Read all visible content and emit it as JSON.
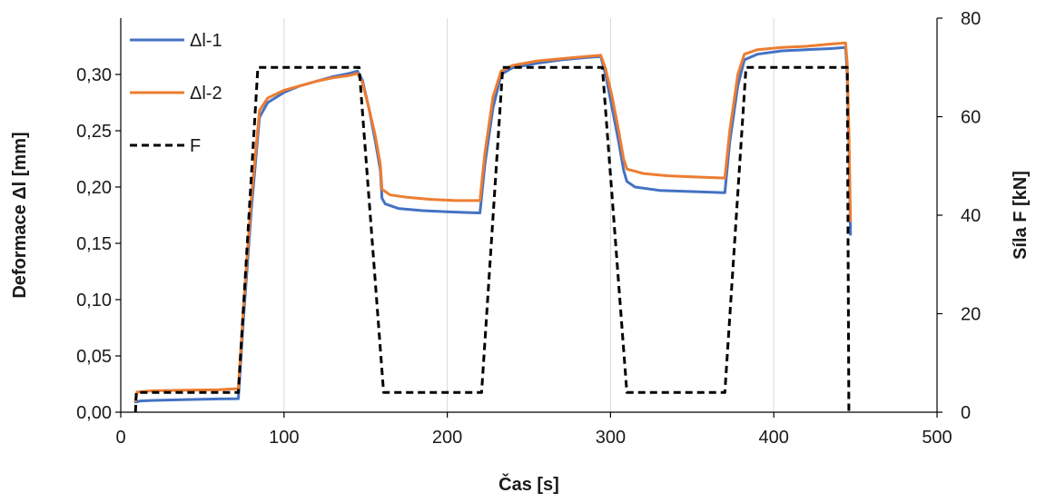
{
  "chart_data": {
    "type": "line",
    "title": "",
    "xlabel": "Čas [s]",
    "ylabel_left": "Deformace Δl [mm]",
    "ylabel_right": "Síla F [kN]",
    "xlim": [
      0,
      500
    ],
    "ylim_left": [
      0,
      0.35
    ],
    "ylim_right": [
      0,
      80
    ],
    "x_ticks": [
      0,
      100,
      200,
      300,
      400,
      500
    ],
    "x_tick_labels": [
      "0",
      "100",
      "200",
      "300",
      "400",
      "500"
    ],
    "y_left_ticks": [
      0,
      0.05,
      0.1,
      0.15,
      0.2,
      0.25,
      0.3
    ],
    "y_left_tick_labels": [
      "0,00",
      "0,05",
      "0,10",
      "0,15",
      "0,20",
      "0,25",
      "0,30"
    ],
    "y_right_ticks": [
      0,
      20,
      40,
      60,
      80
    ],
    "y_right_tick_labels": [
      "0",
      "20",
      "40",
      "60",
      "80"
    ],
    "grid": "vertical",
    "legend_position": "top-left",
    "series": [
      {
        "name": "Δl-1",
        "axis": "left",
        "color": "#4472C4",
        "dash": "solid",
        "points": [
          [
            9,
            0.009
          ],
          [
            12,
            0.01
          ],
          [
            20,
            0.0105
          ],
          [
            40,
            0.0112
          ],
          [
            60,
            0.0118
          ],
          [
            72,
            0.012
          ],
          [
            75,
            0.08
          ],
          [
            80,
            0.18
          ],
          [
            85,
            0.262
          ],
          [
            90,
            0.275
          ],
          [
            100,
            0.284
          ],
          [
            110,
            0.29
          ],
          [
            120,
            0.294
          ],
          [
            130,
            0.298
          ],
          [
            140,
            0.301
          ],
          [
            145,
            0.303
          ],
          [
            148,
            0.295
          ],
          [
            152,
            0.27
          ],
          [
            156,
            0.24
          ],
          [
            159,
            0.215
          ],
          [
            160,
            0.19
          ],
          [
            162,
            0.185
          ],
          [
            170,
            0.181
          ],
          [
            185,
            0.179
          ],
          [
            200,
            0.178
          ],
          [
            220,
            0.177
          ],
          [
            223,
            0.22
          ],
          [
            228,
            0.27
          ],
          [
            233,
            0.3
          ],
          [
            240,
            0.306
          ],
          [
            255,
            0.31
          ],
          [
            270,
            0.313
          ],
          [
            285,
            0.315
          ],
          [
            294,
            0.316
          ],
          [
            297,
            0.3
          ],
          [
            301,
            0.27
          ],
          [
            305,
            0.24
          ],
          [
            308,
            0.215
          ],
          [
            310,
            0.205
          ],
          [
            315,
            0.2
          ],
          [
            330,
            0.197
          ],
          [
            350,
            0.196
          ],
          [
            370,
            0.195
          ],
          [
            373,
            0.24
          ],
          [
            378,
            0.29
          ],
          [
            382,
            0.313
          ],
          [
            390,
            0.318
          ],
          [
            405,
            0.321
          ],
          [
            420,
            0.322
          ],
          [
            435,
            0.323
          ],
          [
            444,
            0.324
          ],
          [
            445,
            0.3
          ],
          [
            446,
            0.24
          ],
          [
            447,
            0.158
          ]
        ]
      },
      {
        "name": "Δl-2",
        "axis": "left",
        "color": "#ED7D31",
        "dash": "solid",
        "points": [
          [
            9,
            0.01
          ],
          [
            10,
            0.018
          ],
          [
            20,
            0.019
          ],
          [
            40,
            0.0195
          ],
          [
            60,
            0.02
          ],
          [
            72,
            0.021
          ],
          [
            75,
            0.09
          ],
          [
            80,
            0.19
          ],
          [
            85,
            0.268
          ],
          [
            90,
            0.279
          ],
          [
            100,
            0.286
          ],
          [
            110,
            0.29
          ],
          [
            120,
            0.294
          ],
          [
            130,
            0.297
          ],
          [
            140,
            0.299
          ],
          [
            145,
            0.301
          ],
          [
            148,
            0.293
          ],
          [
            152,
            0.27
          ],
          [
            156,
            0.245
          ],
          [
            159,
            0.22
          ],
          [
            160,
            0.198
          ],
          [
            165,
            0.193
          ],
          [
            175,
            0.191
          ],
          [
            190,
            0.189
          ],
          [
            205,
            0.188
          ],
          [
            220,
            0.188
          ],
          [
            223,
            0.23
          ],
          [
            228,
            0.28
          ],
          [
            233,
            0.303
          ],
          [
            240,
            0.308
          ],
          [
            255,
            0.312
          ],
          [
            270,
            0.314
          ],
          [
            285,
            0.316
          ],
          [
            294,
            0.317
          ],
          [
            297,
            0.305
          ],
          [
            301,
            0.28
          ],
          [
            305,
            0.25
          ],
          [
            308,
            0.225
          ],
          [
            310,
            0.216
          ],
          [
            320,
            0.212
          ],
          [
            335,
            0.21
          ],
          [
            350,
            0.209
          ],
          [
            370,
            0.208
          ],
          [
            373,
            0.25
          ],
          [
            378,
            0.3
          ],
          [
            382,
            0.318
          ],
          [
            390,
            0.322
          ],
          [
            405,
            0.324
          ],
          [
            420,
            0.325
          ],
          [
            435,
            0.327
          ],
          [
            444,
            0.328
          ],
          [
            445,
            0.31
          ],
          [
            446,
            0.25
          ],
          [
            447,
            0.17
          ]
        ]
      },
      {
        "name": "F",
        "axis": "right",
        "color": "#000000",
        "dash": "dashed",
        "points": [
          [
            9,
            0
          ],
          [
            9.5,
            4
          ],
          [
            72,
            4
          ],
          [
            84,
            70
          ],
          [
            146,
            70
          ],
          [
            161,
            4
          ],
          [
            221,
            4
          ],
          [
            234,
            70
          ],
          [
            295,
            70
          ],
          [
            310,
            4
          ],
          [
            370,
            4
          ],
          [
            383,
            70
          ],
          [
            445,
            70
          ],
          [
            446,
            0
          ]
        ]
      }
    ]
  }
}
